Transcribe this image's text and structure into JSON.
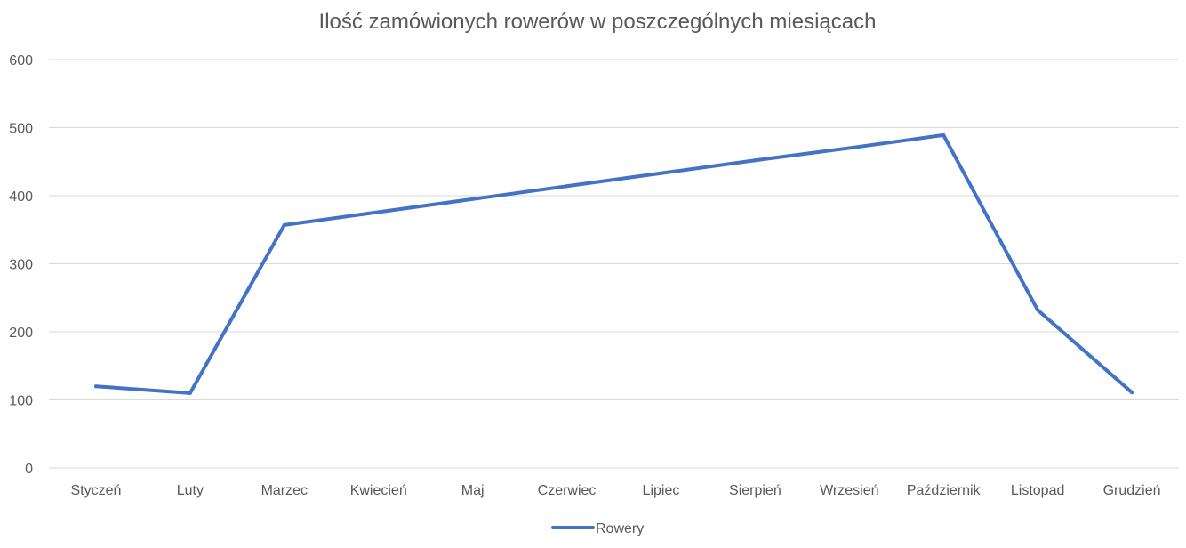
{
  "chart_data": {
    "type": "line",
    "title": "Ilość zamówionych rowerów w poszczególnych miesiącach",
    "xlabel": "",
    "ylabel": "",
    "categories": [
      "Styczeń",
      "Luty",
      "Marzec",
      "Kwiecień",
      "Maj",
      "Czerwiec",
      "Lipiec",
      "Sierpień",
      "Wrzesień",
      "Październik",
      "Listopad",
      "Grudzień"
    ],
    "series": [
      {
        "name": "Rowery",
        "color": "#4472c4",
        "values": [
          120,
          110,
          357,
          376,
          395,
          414,
          433,
          452,
          470,
          489,
          232,
          111
        ]
      }
    ],
    "ylim": [
      0,
      600
    ],
    "yticks": [
      "0",
      "100",
      "200",
      "300",
      "400",
      "500",
      "600"
    ],
    "grid": true,
    "legend_position": "bottom"
  }
}
